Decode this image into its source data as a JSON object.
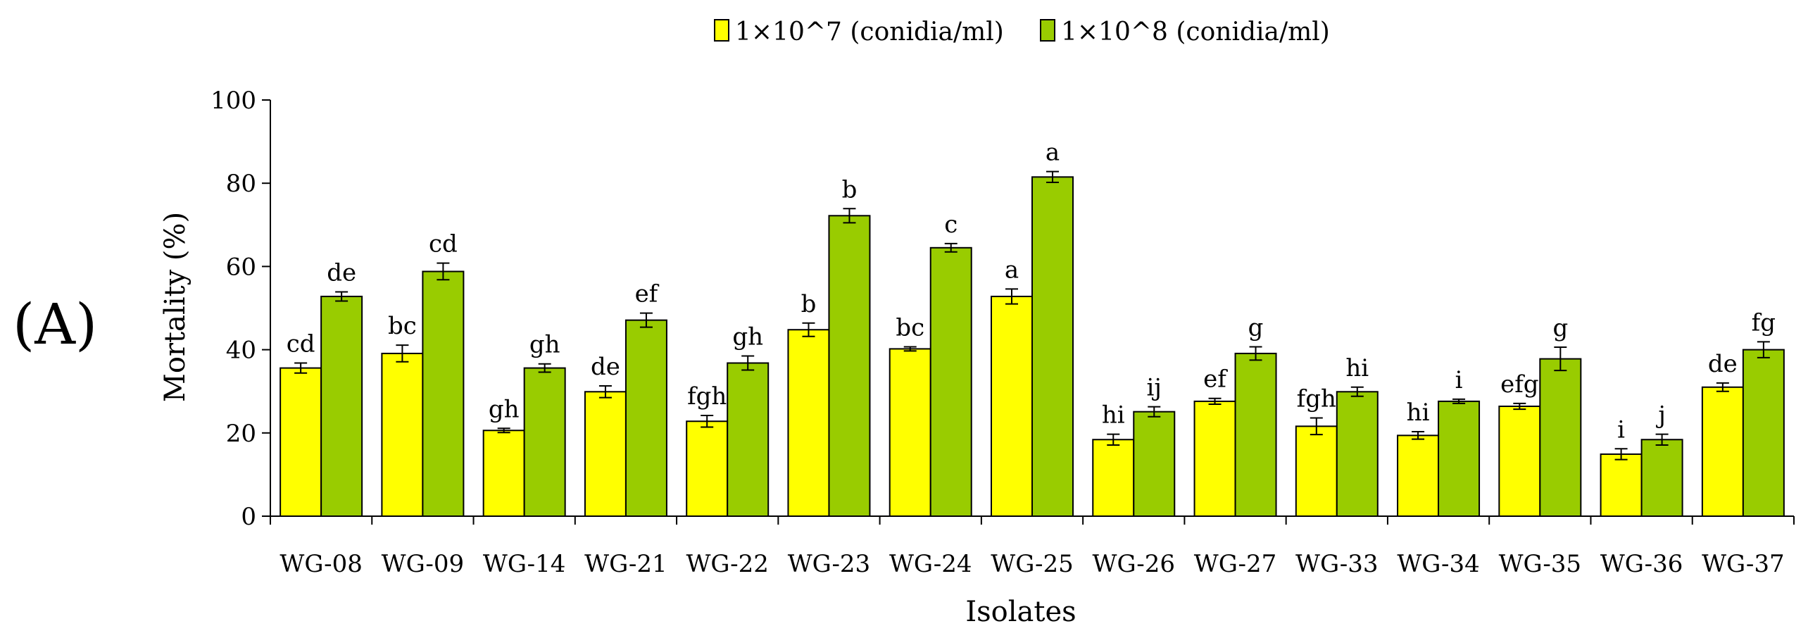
{
  "panel_label": "(A)",
  "chart_data": {
    "type": "bar",
    "title": "",
    "xlabel": "Isolates",
    "ylabel": "Mortality (%)",
    "ylim": [
      0,
      100
    ],
    "yticks": [
      0,
      20,
      40,
      60,
      80,
      100
    ],
    "grid": false,
    "legend_position": "top-center",
    "categories": [
      "WG-08",
      "WG-09",
      "WG-14",
      "WG-21",
      "WG-22",
      "WG-23",
      "WG-24",
      "WG-25",
      "WG-26",
      "WG-27",
      "WG-33",
      "WG-34",
      "WG-35",
      "WG-36",
      "WG-37"
    ],
    "series": [
      {
        "name": "1×10^7 (conidia/ml)",
        "color": "#FFFF00",
        "values": [
          35.6,
          39.1,
          20.6,
          29.9,
          22.8,
          44.8,
          40.2,
          52.8,
          18.4,
          27.6,
          21.6,
          19.4,
          26.4,
          14.9,
          31.0
        ],
        "errors": [
          1.2,
          2.0,
          0.5,
          1.4,
          1.4,
          1.6,
          0.5,
          1.8,
          1.3,
          0.7,
          2.0,
          0.9,
          0.7,
          1.3,
          1.0
        ],
        "letters": [
          "cd",
          "bc",
          "gh",
          "de",
          "fgh",
          "b",
          "bc",
          "a",
          "hi",
          "ef",
          "fgh",
          "hi",
          "efg",
          "i",
          "de"
        ]
      },
      {
        "name": "1×10^8 (conidia/ml)",
        "color": "#99CC00",
        "values": [
          52.8,
          58.8,
          35.6,
          47.1,
          36.8,
          72.2,
          64.5,
          81.5,
          25.1,
          39.1,
          29.9,
          27.6,
          37.8,
          18.4,
          40.0
        ],
        "errors": [
          1.1,
          2.0,
          1.0,
          1.7,
          1.7,
          1.7,
          1.0,
          1.3,
          1.2,
          1.6,
          1.1,
          0.5,
          2.8,
          1.3,
          1.9
        ],
        "letters": [
          "de",
          "cd",
          "gh",
          "ef",
          "gh",
          "b",
          "c",
          "a",
          "ij",
          "g",
          "hi",
          "i",
          "g",
          "j",
          "fg"
        ]
      }
    ]
  }
}
